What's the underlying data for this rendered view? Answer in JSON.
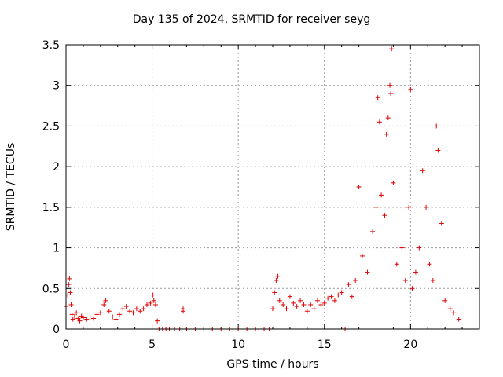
{
  "chart_data": {
    "type": "scatter",
    "title": "Day 135 of 2024, SRMTID for receiver seyg",
    "xlabel": "GPS time / hours",
    "ylabel": "SRMTID / TECUs",
    "xlim": [
      0,
      24
    ],
    "ylim": [
      0,
      3.5
    ],
    "xticks": [
      "0",
      "5",
      "10",
      "15",
      "20"
    ],
    "xtick_values": [
      0,
      5,
      10,
      15,
      20
    ],
    "yticks": [
      "0",
      "0.5",
      "1",
      "1.5",
      "2",
      "2.5",
      "3",
      "3.5"
    ],
    "ytick_values": [
      0,
      0.5,
      1,
      1.5,
      2,
      2.5,
      3,
      3.5
    ],
    "grid": true,
    "marker": "+",
    "color": "#e00000",
    "series": [
      {
        "name": "SRMTID",
        "points": [
          [
            0.0,
            0.28
          ],
          [
            0.1,
            0.42
          ],
          [
            0.15,
            0.55
          ],
          [
            0.2,
            0.62
          ],
          [
            0.25,
            0.45
          ],
          [
            0.3,
            0.3
          ],
          [
            0.35,
            0.18
          ],
          [
            0.4,
            0.12
          ],
          [
            0.5,
            0.15
          ],
          [
            0.6,
            0.2
          ],
          [
            0.7,
            0.13
          ],
          [
            0.8,
            0.1
          ],
          [
            0.9,
            0.16
          ],
          [
            1.0,
            0.14
          ],
          [
            1.2,
            0.12
          ],
          [
            1.4,
            0.15
          ],
          [
            1.6,
            0.13
          ],
          [
            1.8,
            0.18
          ],
          [
            2.0,
            0.2
          ],
          [
            2.2,
            0.3
          ],
          [
            2.3,
            0.35
          ],
          [
            2.5,
            0.22
          ],
          [
            2.7,
            0.15
          ],
          [
            2.9,
            0.12
          ],
          [
            3.1,
            0.18
          ],
          [
            3.3,
            0.25
          ],
          [
            3.5,
            0.28
          ],
          [
            3.7,
            0.22
          ],
          [
            3.9,
            0.2
          ],
          [
            4.1,
            0.25
          ],
          [
            4.3,
            0.22
          ],
          [
            4.5,
            0.25
          ],
          [
            4.7,
            0.3
          ],
          [
            4.9,
            0.32
          ],
          [
            5.05,
            0.42
          ],
          [
            5.1,
            0.35
          ],
          [
            5.2,
            0.3
          ],
          [
            5.3,
            0.1
          ],
          [
            5.4,
            0.0
          ],
          [
            5.6,
            0.0
          ],
          [
            5.8,
            0.0
          ],
          [
            6.0,
            0.0
          ],
          [
            6.3,
            0.0
          ],
          [
            6.6,
            0.0
          ],
          [
            6.8,
            0.25
          ],
          [
            6.8,
            0.22
          ],
          [
            7.0,
            0.0
          ],
          [
            7.5,
            0.0
          ],
          [
            8.0,
            0.0
          ],
          [
            8.5,
            0.0
          ],
          [
            9.0,
            0.0
          ],
          [
            9.5,
            0.0
          ],
          [
            10.0,
            0.0
          ],
          [
            10.5,
            0.0
          ],
          [
            11.0,
            0.0
          ],
          [
            11.5,
            0.0
          ],
          [
            11.8,
            0.0
          ],
          [
            12.0,
            0.25
          ],
          [
            12.1,
            0.45
          ],
          [
            12.2,
            0.6
          ],
          [
            12.3,
            0.65
          ],
          [
            12.4,
            0.35
          ],
          [
            12.6,
            0.3
          ],
          [
            12.8,
            0.25
          ],
          [
            13.0,
            0.4
          ],
          [
            13.2,
            0.32
          ],
          [
            13.4,
            0.28
          ],
          [
            13.6,
            0.35
          ],
          [
            13.8,
            0.3
          ],
          [
            14.0,
            0.22
          ],
          [
            14.2,
            0.3
          ],
          [
            14.4,
            0.25
          ],
          [
            14.6,
            0.35
          ],
          [
            14.8,
            0.3
          ],
          [
            15.0,
            0.32
          ],
          [
            15.2,
            0.38
          ],
          [
            15.4,
            0.4
          ],
          [
            15.6,
            0.35
          ],
          [
            15.8,
            0.42
          ],
          [
            16.0,
            0.45
          ],
          [
            16.2,
            0.0
          ],
          [
            16.4,
            0.55
          ],
          [
            16.6,
            0.4
          ],
          [
            16.8,
            0.6
          ],
          [
            17.0,
            1.75
          ],
          [
            17.2,
            0.9
          ],
          [
            17.5,
            0.7
          ],
          [
            17.8,
            1.2
          ],
          [
            18.0,
            1.5
          ],
          [
            18.1,
            2.85
          ],
          [
            18.2,
            2.55
          ],
          [
            18.3,
            1.65
          ],
          [
            18.5,
            1.4
          ],
          [
            18.6,
            2.4
          ],
          [
            18.7,
            2.6
          ],
          [
            18.8,
            3.0
          ],
          [
            18.85,
            2.9
          ],
          [
            18.9,
            3.45
          ],
          [
            19.0,
            1.8
          ],
          [
            19.2,
            0.8
          ],
          [
            19.5,
            1.0
          ],
          [
            19.7,
            0.6
          ],
          [
            19.9,
            1.5
          ],
          [
            20.0,
            2.95
          ],
          [
            20.1,
            0.5
          ],
          [
            20.3,
            0.7
          ],
          [
            20.5,
            1.0
          ],
          [
            20.7,
            1.95
          ],
          [
            20.9,
            1.5
          ],
          [
            21.1,
            0.8
          ],
          [
            21.3,
            0.6
          ],
          [
            21.5,
            2.5
          ],
          [
            21.6,
            2.2
          ],
          [
            21.8,
            1.3
          ],
          [
            22.0,
            0.35
          ],
          [
            22.3,
            0.25
          ],
          [
            22.5,
            0.2
          ],
          [
            22.7,
            0.15
          ],
          [
            22.8,
            0.12
          ]
        ]
      }
    ]
  }
}
